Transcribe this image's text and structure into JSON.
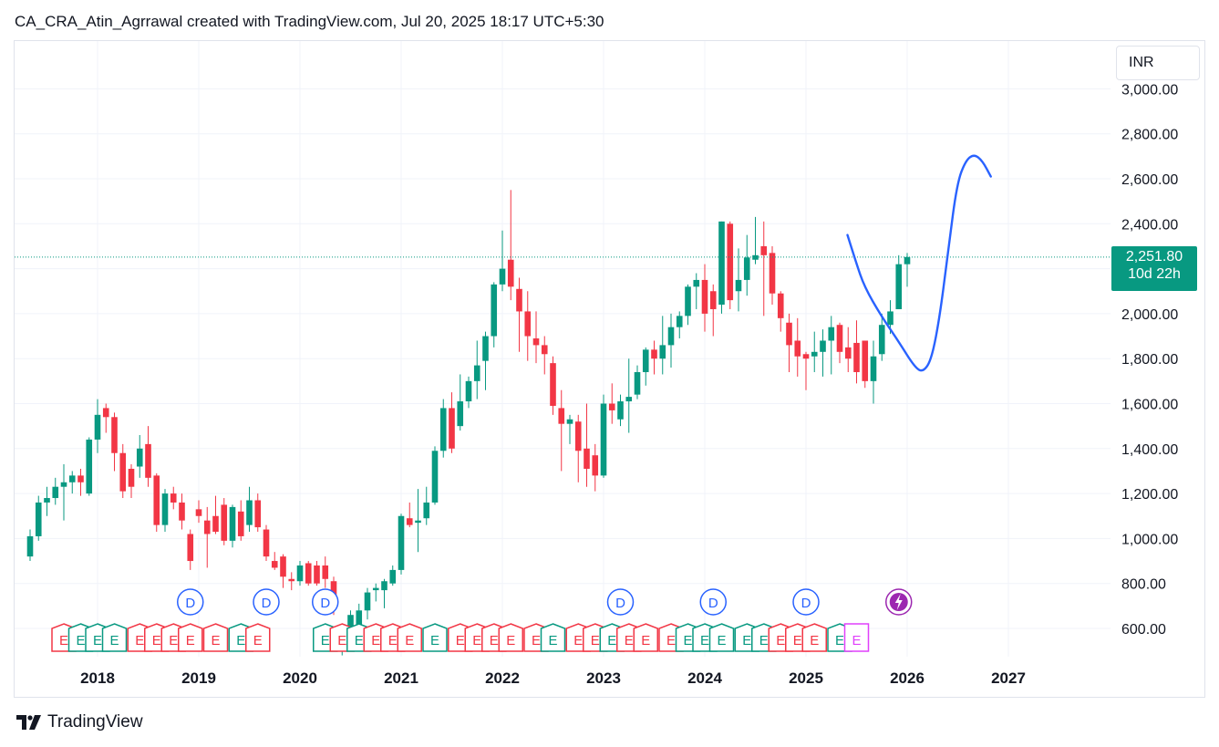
{
  "header": {
    "title": "CA_CRA_Atin_Agrrawal created with TradingView.com, Jul 20, 2025 18:17 UTC+5:30"
  },
  "currency": "INR",
  "last_price": {
    "value": "2,251.80",
    "countdown": "10d 22h"
  },
  "brand": {
    "name": "TradingView"
  },
  "colors": {
    "up": "#089981",
    "down": "#f23645",
    "drawing": "#2962ff",
    "dividend": "#2962ff",
    "split": "#9c27b0"
  },
  "icons": {
    "logo": "tradingview-logo-icon",
    "dividend": "dividend-marker-icon",
    "earnings": "earnings-marker-icon",
    "split": "lightning-icon"
  },
  "markers": {
    "dividend_label": "D",
    "earnings_label": "E"
  },
  "chart_data": {
    "type": "candlestick",
    "interval": "monthly",
    "currency": "INR",
    "y_ticks": [
      "600.00",
      "800.00",
      "1,000.00",
      "1,200.00",
      "1,400.00",
      "1,600.00",
      "1,800.00",
      "2,000.00",
      "2,200.00",
      "2,400.00",
      "2,600.00",
      "2,800.00",
      "3,000.00"
    ],
    "ylim": [
      500,
      3060
    ],
    "x_ticks": [
      "2018",
      "2019",
      "2020",
      "2021",
      "2022",
      "2023",
      "2024",
      "2025",
      "2026",
      "2027"
    ],
    "last_price": 2251.8,
    "candles": [
      {
        "t": "2017-05",
        "o": 920,
        "h": 1040,
        "l": 900,
        "c": 1010
      },
      {
        "t": "2017-06",
        "o": 1010,
        "h": 1190,
        "l": 990,
        "c": 1160
      },
      {
        "t": "2017-07",
        "o": 1160,
        "h": 1230,
        "l": 1100,
        "c": 1180
      },
      {
        "t": "2017-08",
        "o": 1180,
        "h": 1270,
        "l": 1150,
        "c": 1230
      },
      {
        "t": "2017-09",
        "o": 1230,
        "h": 1330,
        "l": 1080,
        "c": 1250
      },
      {
        "t": "2017-10",
        "o": 1250,
        "h": 1300,
        "l": 1200,
        "c": 1280
      },
      {
        "t": "2017-11",
        "o": 1280,
        "h": 1310,
        "l": 1190,
        "c": 1250
      },
      {
        "t": "2017-12",
        "o": 1200,
        "h": 1450,
        "l": 1190,
        "c": 1440
      },
      {
        "t": "2018-01",
        "o": 1440,
        "h": 1620,
        "l": 1380,
        "c": 1550
      },
      {
        "t": "2018-02",
        "o": 1580,
        "h": 1600,
        "l": 1470,
        "c": 1540
      },
      {
        "t": "2018-03",
        "o": 1540,
        "h": 1560,
        "l": 1300,
        "c": 1380
      },
      {
        "t": "2018-04",
        "o": 1380,
        "h": 1420,
        "l": 1180,
        "c": 1210
      },
      {
        "t": "2018-05",
        "o": 1310,
        "h": 1330,
        "l": 1180,
        "c": 1230
      },
      {
        "t": "2018-06",
        "o": 1320,
        "h": 1460,
        "l": 1270,
        "c": 1400
      },
      {
        "t": "2018-07",
        "o": 1420,
        "h": 1500,
        "l": 1230,
        "c": 1270
      },
      {
        "t": "2018-08",
        "o": 1280,
        "h": 1290,
        "l": 1030,
        "c": 1060
      },
      {
        "t": "2018-09",
        "o": 1060,
        "h": 1220,
        "l": 1030,
        "c": 1200
      },
      {
        "t": "2018-10",
        "o": 1200,
        "h": 1230,
        "l": 1130,
        "c": 1160
      },
      {
        "t": "2018-11",
        "o": 1160,
        "h": 1200,
        "l": 1040,
        "c": 1080
      },
      {
        "t": "2018-12",
        "o": 1020,
        "h": 1040,
        "l": 860,
        "c": 900
      },
      {
        "t": "2019-01",
        "o": 1130,
        "h": 1170,
        "l": 1070,
        "c": 1100
      },
      {
        "t": "2019-02",
        "o": 1080,
        "h": 1140,
        "l": 870,
        "c": 1020
      },
      {
        "t": "2019-03",
        "o": 1100,
        "h": 1190,
        "l": 1020,
        "c": 1030
      },
      {
        "t": "2019-04",
        "o": 1150,
        "h": 1180,
        "l": 970,
        "c": 990
      },
      {
        "t": "2019-05",
        "o": 990,
        "h": 1150,
        "l": 960,
        "c": 1140
      },
      {
        "t": "2019-06",
        "o": 1120,
        "h": 1170,
        "l": 990,
        "c": 1010
      },
      {
        "t": "2019-07",
        "o": 1060,
        "h": 1230,
        "l": 1030,
        "c": 1170
      },
      {
        "t": "2019-08",
        "o": 1170,
        "h": 1200,
        "l": 1030,
        "c": 1050
      },
      {
        "t": "2019-09",
        "o": 1040,
        "h": 1060,
        "l": 900,
        "c": 920
      },
      {
        "t": "2019-10",
        "o": 900,
        "h": 940,
        "l": 860,
        "c": 870
      },
      {
        "t": "2019-11",
        "o": 920,
        "h": 930,
        "l": 780,
        "c": 830
      },
      {
        "t": "2019-12",
        "o": 820,
        "h": 850,
        "l": 770,
        "c": 810
      },
      {
        "t": "2020-01",
        "o": 810,
        "h": 900,
        "l": 790,
        "c": 880
      },
      {
        "t": "2020-02",
        "o": 890,
        "h": 900,
        "l": 790,
        "c": 800
      },
      {
        "t": "2020-03",
        "o": 880,
        "h": 900,
        "l": 790,
        "c": 800
      },
      {
        "t": "2020-04",
        "o": 880,
        "h": 920,
        "l": 780,
        "c": 820
      },
      {
        "t": "2020-05",
        "o": 810,
        "h": 830,
        "l": 660,
        "c": 690
      },
      {
        "t": "2020-06",
        "o": 520,
        "h": 560,
        "l": 480,
        "c": 540
      },
      {
        "t": "2020-07",
        "o": 540,
        "h": 680,
        "l": 530,
        "c": 660
      },
      {
        "t": "2020-08",
        "o": 610,
        "h": 710,
        "l": 600,
        "c": 680
      },
      {
        "t": "2020-09",
        "o": 680,
        "h": 780,
        "l": 640,
        "c": 760
      },
      {
        "t": "2020-10",
        "o": 770,
        "h": 800,
        "l": 720,
        "c": 780
      },
      {
        "t": "2020-11",
        "o": 770,
        "h": 820,
        "l": 690,
        "c": 810
      },
      {
        "t": "2020-12",
        "o": 800,
        "h": 880,
        "l": 790,
        "c": 860
      },
      {
        "t": "2021-01",
        "o": 860,
        "h": 1110,
        "l": 840,
        "c": 1100
      },
      {
        "t": "2021-02",
        "o": 1090,
        "h": 1160,
        "l": 1050,
        "c": 1060
      },
      {
        "t": "2021-03",
        "o": 1070,
        "h": 1220,
        "l": 940,
        "c": 1080
      },
      {
        "t": "2021-04",
        "o": 1090,
        "h": 1230,
        "l": 1060,
        "c": 1160
      },
      {
        "t": "2021-05",
        "o": 1160,
        "h": 1410,
        "l": 1150,
        "c": 1390
      },
      {
        "t": "2021-06",
        "o": 1390,
        "h": 1620,
        "l": 1360,
        "c": 1580
      },
      {
        "t": "2021-07",
        "o": 1580,
        "h": 1650,
        "l": 1380,
        "c": 1400
      },
      {
        "t": "2021-08",
        "o": 1500,
        "h": 1730,
        "l": 1480,
        "c": 1610
      },
      {
        "t": "2021-09",
        "o": 1610,
        "h": 1720,
        "l": 1580,
        "c": 1700
      },
      {
        "t": "2021-10",
        "o": 1700,
        "h": 1880,
        "l": 1620,
        "c": 1770
      },
      {
        "t": "2021-11",
        "o": 1790,
        "h": 1920,
        "l": 1660,
        "c": 1900
      },
      {
        "t": "2021-12",
        "o": 1900,
        "h": 2140,
        "l": 1850,
        "c": 2130
      },
      {
        "t": "2022-01",
        "o": 2130,
        "h": 2370,
        "l": 2100,
        "c": 2200
      },
      {
        "t": "2022-02",
        "o": 2240,
        "h": 2550,
        "l": 2060,
        "c": 2120
      },
      {
        "t": "2022-03",
        "o": 2110,
        "h": 2160,
        "l": 1830,
        "c": 2010
      },
      {
        "t": "2022-04",
        "o": 2010,
        "h": 2100,
        "l": 1790,
        "c": 1900
      },
      {
        "t": "2022-05",
        "o": 1890,
        "h": 2010,
        "l": 1780,
        "c": 1860
      },
      {
        "t": "2022-06",
        "o": 1860,
        "h": 1900,
        "l": 1730,
        "c": 1820
      },
      {
        "t": "2022-07",
        "o": 1780,
        "h": 1810,
        "l": 1550,
        "c": 1590
      },
      {
        "t": "2022-08",
        "o": 1580,
        "h": 1660,
        "l": 1300,
        "c": 1510
      },
      {
        "t": "2022-09",
        "o": 1510,
        "h": 1550,
        "l": 1420,
        "c": 1530
      },
      {
        "t": "2022-10",
        "o": 1520,
        "h": 1550,
        "l": 1250,
        "c": 1390
      },
      {
        "t": "2022-11",
        "o": 1400,
        "h": 1600,
        "l": 1230,
        "c": 1310
      },
      {
        "t": "2022-12",
        "o": 1370,
        "h": 1420,
        "l": 1210,
        "c": 1280
      },
      {
        "t": "2023-01",
        "o": 1280,
        "h": 1640,
        "l": 1270,
        "c": 1600
      },
      {
        "t": "2023-02",
        "o": 1600,
        "h": 1690,
        "l": 1510,
        "c": 1570
      },
      {
        "t": "2023-03",
        "o": 1530,
        "h": 1640,
        "l": 1500,
        "c": 1610
      },
      {
        "t": "2023-04",
        "o": 1610,
        "h": 1800,
        "l": 1470,
        "c": 1630
      },
      {
        "t": "2023-05",
        "o": 1640,
        "h": 1770,
        "l": 1620,
        "c": 1740
      },
      {
        "t": "2023-06",
        "o": 1740,
        "h": 1850,
        "l": 1680,
        "c": 1840
      },
      {
        "t": "2023-07",
        "o": 1840,
        "h": 1880,
        "l": 1730,
        "c": 1800
      },
      {
        "t": "2023-08",
        "o": 1800,
        "h": 1990,
        "l": 1730,
        "c": 1860
      },
      {
        "t": "2023-09",
        "o": 1860,
        "h": 2000,
        "l": 1760,
        "c": 1940
      },
      {
        "t": "2023-10",
        "o": 1940,
        "h": 2010,
        "l": 1890,
        "c": 1990
      },
      {
        "t": "2023-11",
        "o": 1990,
        "h": 2130,
        "l": 1950,
        "c": 2120
      },
      {
        "t": "2023-12",
        "o": 2120,
        "h": 2180,
        "l": 2020,
        "c": 2150
      },
      {
        "t": "2024-01",
        "o": 2150,
        "h": 2220,
        "l": 1920,
        "c": 2000
      },
      {
        "t": "2024-02",
        "o": 2100,
        "h": 2130,
        "l": 1900,
        "c": 2020
      },
      {
        "t": "2024-03",
        "o": 2040,
        "h": 2410,
        "l": 2000,
        "c": 2410
      },
      {
        "t": "2024-04",
        "o": 2400,
        "h": 2410,
        "l": 2020,
        "c": 2060
      },
      {
        "t": "2024-05",
        "o": 2100,
        "h": 2290,
        "l": 2010,
        "c": 2150
      },
      {
        "t": "2024-06",
        "o": 2150,
        "h": 2350,
        "l": 2080,
        "c": 2250
      },
      {
        "t": "2024-07",
        "o": 2240,
        "h": 2430,
        "l": 2220,
        "c": 2260
      },
      {
        "t": "2024-08",
        "o": 2300,
        "h": 2410,
        "l": 1990,
        "c": 2260
      },
      {
        "t": "2024-09",
        "o": 2270,
        "h": 2300,
        "l": 2040,
        "c": 2090
      },
      {
        "t": "2024-10",
        "o": 2090,
        "h": 2100,
        "l": 1920,
        "c": 1980
      },
      {
        "t": "2024-11",
        "o": 1960,
        "h": 2000,
        "l": 1740,
        "c": 1860
      },
      {
        "t": "2024-12",
        "o": 1880,
        "h": 1980,
        "l": 1720,
        "c": 1810
      },
      {
        "t": "2025-01",
        "o": 1820,
        "h": 1830,
        "l": 1660,
        "c": 1800
      },
      {
        "t": "2025-02",
        "o": 1810,
        "h": 1920,
        "l": 1740,
        "c": 1830
      },
      {
        "t": "2025-03",
        "o": 1830,
        "h": 1930,
        "l": 1720,
        "c": 1880
      },
      {
        "t": "2025-04",
        "o": 1880,
        "h": 1990,
        "l": 1730,
        "c": 1940
      },
      {
        "t": "2025-05",
        "o": 1950,
        "h": 1960,
        "l": 1780,
        "c": 1830
      },
      {
        "t": "2025-06",
        "o": 1850,
        "h": 1940,
        "l": 1740,
        "c": 1800
      },
      {
        "t": "2025-07",
        "o": 1870,
        "h": 1970,
        "l": 1690,
        "c": 1740
      },
      {
        "t": "2025-08",
        "o": 1880,
        "h": 1880,
        "l": 1670,
        "c": 1700
      },
      {
        "t": "2025-09",
        "o": 1700,
        "h": 1880,
        "l": 1600,
        "c": 1810
      },
      {
        "t": "2025-10",
        "o": 1820,
        "h": 2000,
        "l": 1790,
        "c": 1950
      },
      {
        "t": "2025-11",
        "o": 1950,
        "h": 2060,
        "l": 1910,
        "c": 2010
      },
      {
        "t": "2025-12",
        "o": 2020,
        "h": 2260,
        "l": 2020,
        "c": 2220
      },
      {
        "t": "2026-01",
        "o": 2220,
        "h": 2270,
        "l": 2120,
        "c": 2252
      }
    ],
    "dividend_markers": [
      "2018-12",
      "2019-09",
      "2020-04",
      "2023-03",
      "2024-02",
      "2025-01"
    ],
    "split_markers": [
      "2025-12"
    ],
    "earnings_markers": [
      {
        "t": "2017-09",
        "dir": "down"
      },
      {
        "t": "2017-11",
        "dir": "up"
      },
      {
        "t": "2018-01",
        "dir": "up"
      },
      {
        "t": "2018-03",
        "dir": "up"
      },
      {
        "t": "2018-06",
        "dir": "down"
      },
      {
        "t": "2018-08",
        "dir": "down"
      },
      {
        "t": "2018-10",
        "dir": "down"
      },
      {
        "t": "2018-12",
        "dir": "down"
      },
      {
        "t": "2019-03",
        "dir": "down"
      },
      {
        "t": "2019-06",
        "dir": "up"
      },
      {
        "t": "2019-08",
        "dir": "down"
      },
      {
        "t": "2020-04",
        "dir": "up"
      },
      {
        "t": "2020-06",
        "dir": "down"
      },
      {
        "t": "2020-08",
        "dir": "up"
      },
      {
        "t": "2020-10",
        "dir": "down"
      },
      {
        "t": "2020-12",
        "dir": "down"
      },
      {
        "t": "2021-02",
        "dir": "down"
      },
      {
        "t": "2021-05",
        "dir": "up"
      },
      {
        "t": "2021-08",
        "dir": "down"
      },
      {
        "t": "2021-10",
        "dir": "down"
      },
      {
        "t": "2021-12",
        "dir": "down"
      },
      {
        "t": "2022-02",
        "dir": "down"
      },
      {
        "t": "2022-05",
        "dir": "down"
      },
      {
        "t": "2022-07",
        "dir": "up"
      },
      {
        "t": "2022-10",
        "dir": "down"
      },
      {
        "t": "2022-12",
        "dir": "down"
      },
      {
        "t": "2023-02",
        "dir": "up"
      },
      {
        "t": "2023-04",
        "dir": "down"
      },
      {
        "t": "2023-06",
        "dir": "down"
      },
      {
        "t": "2023-09",
        "dir": "down"
      },
      {
        "t": "2023-11",
        "dir": "up"
      },
      {
        "t": "2024-01",
        "dir": "up"
      },
      {
        "t": "2024-03",
        "dir": "up"
      },
      {
        "t": "2024-06",
        "dir": "up"
      },
      {
        "t": "2024-08",
        "dir": "up"
      },
      {
        "t": "2024-10",
        "dir": "down"
      },
      {
        "t": "2024-12",
        "dir": "down"
      },
      {
        "t": "2025-02",
        "dir": "down"
      },
      {
        "t": "2025-05",
        "dir": "up"
      },
      {
        "t": "2025-07",
        "dir": "split"
      }
    ],
    "drawn_projection": [
      {
        "t": "2026-07",
        "v": 2350
      },
      {
        "t": "2026-08",
        "v": 2230
      },
      {
        "t": "2026-09",
        "v": 2120
      },
      {
        "t": "2026-11",
        "v": 1990
      },
      {
        "t": "2027-01",
        "v": 1880
      },
      {
        "t": "2027-03",
        "v": 1760
      },
      {
        "t": "2027-04",
        "v": 1740
      },
      {
        "t": "2027-05",
        "v": 1800
      },
      {
        "t": "2027-06",
        "v": 2000
      },
      {
        "t": "2027-07",
        "v": 2300
      },
      {
        "t": "2027-08",
        "v": 2580
      },
      {
        "t": "2027-09",
        "v": 2680
      },
      {
        "t": "2027-10",
        "v": 2710
      },
      {
        "t": "2027-11",
        "v": 2680
      },
      {
        "t": "2027-12",
        "v": 2610
      }
    ]
  }
}
